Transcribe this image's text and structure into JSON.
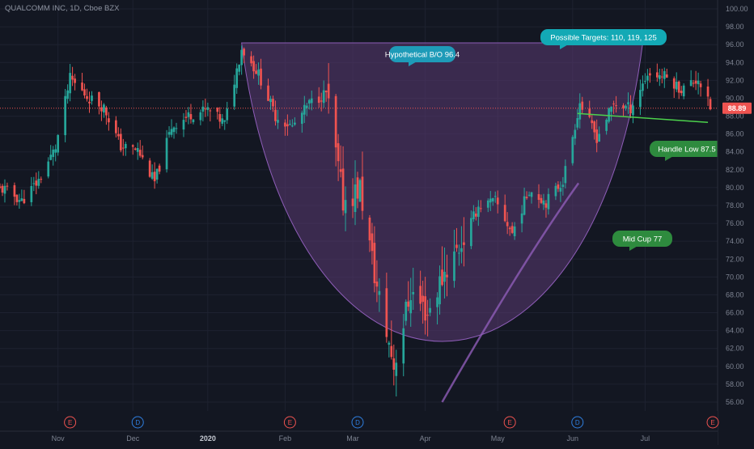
{
  "chart_title": "QUALCOMM INC, 1D, Cboe BZX",
  "current_price_label": "88.89",
  "colors": {
    "background": "#131722",
    "grid": "#1e2230",
    "up": "#26a69a",
    "down": "#ef5350",
    "pattern_fill": "#5b3b73",
    "pattern_stroke": "#8e5db8",
    "handle_line": "#4cd14c",
    "callout_blue": "#1e9bb8",
    "callout_teal": "#13a9b5",
    "callout_green": "#2e8b3e",
    "earnings": "#ef5350",
    "dividend": "#2f7fe0"
  },
  "annotations": {
    "breakout": "Hypothetical B/O  96.4",
    "targets": "Possible Targets: 110, 119, 125",
    "handle": "Handle Low 87.5",
    "midcup": "Mid Cup   77"
  },
  "event_markers": [
    {
      "letter": "E",
      "type": "earnings",
      "date": "2019-11-06"
    },
    {
      "letter": "D",
      "type": "dividend",
      "date": "2019-12-04"
    },
    {
      "letter": "E",
      "type": "earnings",
      "date": "2020-02-05"
    },
    {
      "letter": "D",
      "type": "dividend",
      "date": "2020-03-04"
    },
    {
      "letter": "E",
      "type": "earnings",
      "date": "2020-05-06"
    },
    {
      "letter": "D",
      "type": "dividend",
      "date": "2020-06-03"
    },
    {
      "letter": "E",
      "type": "earnings",
      "date": "2020-07-29"
    }
  ],
  "chart_data": {
    "type": "candlestick",
    "title": "QUALCOMM INC, 1D, Cboe BZX",
    "y_axis_side": "right",
    "ylim": [
      55,
      101
    ],
    "y_ticks": [
      "56.00",
      "58.00",
      "60.00",
      "62.00",
      "64.00",
      "66.00",
      "68.00",
      "70.00",
      "72.00",
      "74.00",
      "76.00",
      "78.00",
      "80.00",
      "82.00",
      "84.00",
      "86.00",
      "88.00",
      "90.00",
      "92.00",
      "94.00",
      "96.00",
      "98.00",
      "100.00"
    ],
    "x_ticks": [
      {
        "label": "Nov",
        "date": "2019-11-01"
      },
      {
        "label": "Dec",
        "date": "2019-12-02"
      },
      {
        "label": "2020",
        "date": "2020-01-02",
        "bold": true
      },
      {
        "label": "Feb",
        "date": "2020-02-03"
      },
      {
        "label": "Mar",
        "date": "2020-03-02"
      },
      {
        "label": "Apr",
        "date": "2020-04-01"
      },
      {
        "label": "May",
        "date": "2020-05-01"
      },
      {
        "label": "Jun",
        "date": "2020-06-01"
      },
      {
        "label": "Jul",
        "date": "2020-07-01"
      }
    ],
    "grid": true,
    "last_price": 88.89,
    "cup_pattern": {
      "rim_left": {
        "date": "2020-01-16",
        "price": 96.2
      },
      "bottom": {
        "date": "2020-04-08",
        "price": 56.0
      },
      "rim_right": {
        "date": "2020-06-30",
        "price": 96.2
      }
    },
    "handle_line": {
      "start": {
        "date": "2020-06-03",
        "price": 88.3
      },
      "end": {
        "date": "2020-07-27",
        "price": 87.3
      }
    },
    "close_series": [
      {
        "date": "2019-10-10",
        "close": 79.8
      },
      {
        "date": "2019-10-17",
        "close": 78.5
      },
      {
        "date": "2019-10-24",
        "close": 80.8
      },
      {
        "date": "2019-10-31",
        "close": 84.5
      },
      {
        "date": "2019-11-06",
        "close": 92.2
      },
      {
        "date": "2019-11-13",
        "close": 90.2
      },
      {
        "date": "2019-11-20",
        "close": 89.0
      },
      {
        "date": "2019-11-27",
        "close": 84.6
      },
      {
        "date": "2019-12-04",
        "close": 84.2
      },
      {
        "date": "2019-12-11",
        "close": 80.6
      },
      {
        "date": "2019-12-18",
        "close": 86.8
      },
      {
        "date": "2019-12-26",
        "close": 88.2
      },
      {
        "date": "2020-01-02",
        "close": 88.7
      },
      {
        "date": "2020-01-09",
        "close": 87.2
      },
      {
        "date": "2020-01-16",
        "close": 95.6
      },
      {
        "date": "2020-01-23",
        "close": 92.7
      },
      {
        "date": "2020-01-30",
        "close": 88.0
      },
      {
        "date": "2020-02-06",
        "close": 86.8
      },
      {
        "date": "2020-02-13",
        "close": 89.4
      },
      {
        "date": "2020-02-20",
        "close": 90.6
      },
      {
        "date": "2020-02-27",
        "close": 78.5
      },
      {
        "date": "2020-03-05",
        "close": 79.9
      },
      {
        "date": "2020-03-12",
        "close": 68.7
      },
      {
        "date": "2020-03-19",
        "close": 60.1
      },
      {
        "date": "2020-03-26",
        "close": 68.4
      },
      {
        "date": "2020-04-02",
        "close": 65.9
      },
      {
        "date": "2020-04-09",
        "close": 70.6
      },
      {
        "date": "2020-04-16",
        "close": 73.8
      },
      {
        "date": "2020-04-23",
        "close": 77.9
      },
      {
        "date": "2020-04-30",
        "close": 78.5
      },
      {
        "date": "2020-05-07",
        "close": 74.9
      },
      {
        "date": "2020-05-14",
        "close": 79.8
      },
      {
        "date": "2020-05-21",
        "close": 78.4
      },
      {
        "date": "2020-05-28",
        "close": 80.8
      },
      {
        "date": "2020-06-04",
        "close": 89.5
      },
      {
        "date": "2020-06-11",
        "close": 85.6
      },
      {
        "date": "2020-06-18",
        "close": 89.4
      },
      {
        "date": "2020-06-25",
        "close": 88.9
      },
      {
        "date": "2020-07-02",
        "close": 92.7
      },
      {
        "date": "2020-07-09",
        "close": 92.5
      },
      {
        "date": "2020-07-16",
        "close": 91.0
      },
      {
        "date": "2020-07-23",
        "close": 92.2
      },
      {
        "date": "2020-07-28",
        "close": 88.89
      }
    ]
  }
}
